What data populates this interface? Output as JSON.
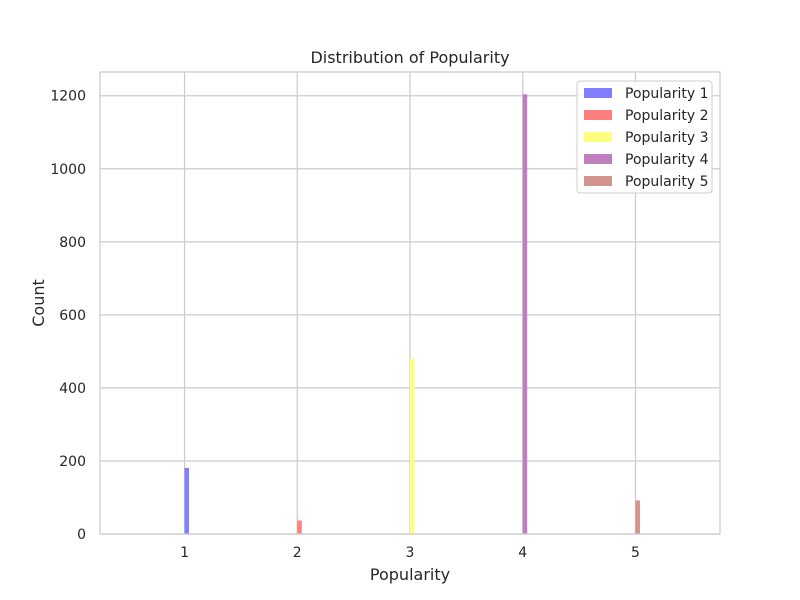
{
  "chart_data": {
    "type": "bar",
    "title": "Distribution of Popularity",
    "xlabel": "Popularity",
    "ylabel": "Count",
    "xlim": [
      0.25,
      5.75
    ],
    "ylim": [
      0,
      1265
    ],
    "x_ticks": [
      1,
      2,
      3,
      4,
      5
    ],
    "y_ticks": [
      0,
      200,
      400,
      600,
      800,
      1000,
      1200
    ],
    "grid": true,
    "legend_position": "top-right",
    "series": [
      {
        "name": "Popularity 1",
        "x": 1,
        "value": 181,
        "color": "#7f7fff"
      },
      {
        "name": "Popularity 2",
        "x": 2,
        "value": 37,
        "color": "#ff7f7f"
      },
      {
        "name": "Popularity 3",
        "x": 3,
        "value": 480,
        "color": "#ffff7f"
      },
      {
        "name": "Popularity 4",
        "x": 4,
        "value": 1204,
        "color": "#bf7fbf"
      },
      {
        "name": "Popularity 5",
        "x": 5,
        "value": 92,
        "color": "#d29390"
      }
    ]
  }
}
